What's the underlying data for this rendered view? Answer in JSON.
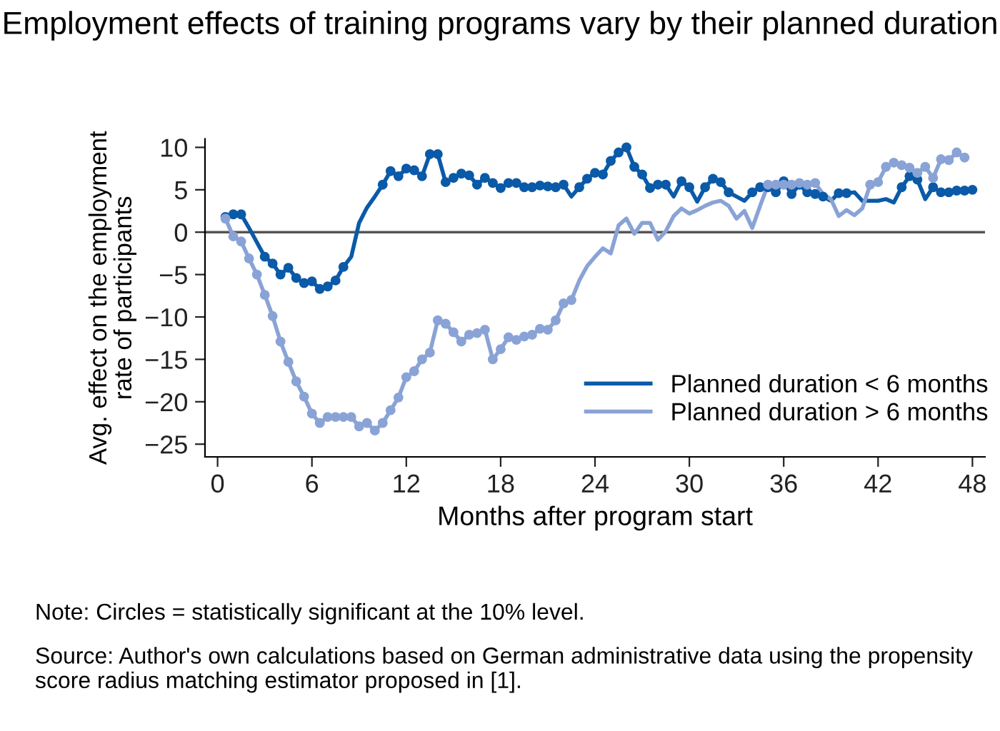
{
  "chart_data": {
    "type": "line",
    "title": "Employment effects of training programs vary by their planned duration",
    "xlabel": "Months after program start",
    "ylabel": "Avg. effect on the employment\nrate of participants",
    "xlim": [
      -0.8,
      48.8
    ],
    "ylim": [
      -26.5,
      11
    ],
    "xticks": [
      0,
      6,
      12,
      18,
      24,
      30,
      36,
      42,
      48
    ],
    "yticks": [
      10,
      5,
      0,
      {
        "value": -5,
        "label": "−5"
      },
      {
        "value": -10,
        "label": "−10"
      },
      {
        "value": -15,
        "label": "−15"
      },
      {
        "value": -20,
        "label": "−20"
      },
      {
        "value": -25,
        "label": "−25"
      }
    ],
    "grid": false,
    "legend": "bottom right",
    "ref_lines": [
      {
        "axis": "y",
        "value": 0,
        "color": "#555555"
      }
    ],
    "annotations": [
      "Note: Circles = statistically significant at the 10% level.",
      "Source: Author's own calculations based on German administrative data using the propensity score radius matching estimator proposed in [1]."
    ],
    "series": [
      {
        "name": "Planned duration < 6 months",
        "color": "#0a5aa8",
        "marker": "none",
        "x": [
          0.5,
          1,
          1.5,
          2,
          2.5,
          3,
          3.5,
          4,
          4.5,
          5,
          5.5,
          6,
          6.5,
          7,
          7.5,
          8,
          8.5,
          9,
          9.5,
          10,
          10.5,
          11,
          11.5,
          12,
          12.5,
          13,
          13.5,
          14,
          14.5,
          15,
          15.5,
          16,
          16.5,
          17,
          17.5,
          18,
          18.5,
          19,
          19.5,
          20,
          20.5,
          21,
          21.5,
          22,
          22.5,
          23,
          23.5,
          24,
          24.5,
          25,
          25.5,
          26,
          26.5,
          27,
          27.5,
          28,
          28.5,
          29,
          29.5,
          30,
          30.5,
          31,
          31.5,
          32,
          32.5,
          33,
          33.5,
          34,
          34.5,
          35,
          35.5,
          36,
          36.5,
          37,
          37.5,
          38,
          38.5,
          39,
          39.5,
          40,
          40.5,
          41,
          41.5,
          42,
          42.5,
          43,
          43.5,
          44,
          44.5,
          45,
          45.5,
          46,
          46.5,
          47,
          47.5,
          48
        ],
        "values": [
          1.8,
          2.1,
          2.1,
          0.5,
          -1.2,
          -2.9,
          -3.7,
          -5.0,
          -4.2,
          -5.4,
          -6.0,
          -5.8,
          -6.7,
          -6.4,
          -5.7,
          -4.1,
          -2.9,
          1.1,
          2.9,
          4.2,
          5.6,
          7.2,
          6.6,
          7.5,
          7.3,
          6.6,
          9.2,
          9.2,
          5.9,
          6.4,
          6.9,
          6.7,
          5.6,
          6.4,
          5.8,
          5.2,
          5.8,
          5.8,
          5.3,
          5.3,
          5.5,
          5.4,
          5.3,
          5.6,
          4.2,
          5.3,
          6.3,
          7.0,
          6.8,
          8.4,
          9.4,
          10.0,
          7.7,
          6.8,
          5.2,
          5.6,
          5.6,
          4.2,
          6.0,
          5.3,
          3.6,
          5.3,
          6.3,
          5.9,
          4.7,
          4.2,
          3.7,
          4.7,
          5.3,
          5.3,
          4.7,
          6.0,
          4.5,
          5.6,
          4.7,
          4.5,
          4.2,
          3.7,
          4.6,
          4.6,
          4.7,
          3.7,
          3.7,
          3.7,
          3.9,
          3.5,
          5.3,
          6.6,
          6.2,
          3.9,
          5.3,
          4.7,
          4.7,
          4.9,
          4.9,
          5.0
        ]
      },
      {
        "name": "Planned duration > 6 months",
        "color": "#8aa3d6",
        "marker": "none",
        "x": [
          0.5,
          1,
          1.5,
          2,
          2.5,
          3,
          3.5,
          4,
          4.5,
          5,
          5.5,
          6,
          6.5,
          7,
          7.5,
          8,
          8.5,
          9,
          9.5,
          10,
          10.5,
          11,
          11.5,
          12,
          12.5,
          13,
          13.5,
          14,
          14.5,
          15,
          15.5,
          16,
          16.5,
          17,
          17.5,
          18,
          18.5,
          19,
          19.5,
          20,
          20.5,
          21,
          21.5,
          22,
          22.5,
          23,
          23.5,
          24,
          24.5,
          25,
          25.5,
          26,
          26.5,
          27,
          27.5,
          28,
          28.5,
          29,
          29.5,
          30,
          30.5,
          31,
          31.5,
          32,
          32.5,
          33,
          33.5,
          34,
          34.5,
          35,
          35.5,
          36,
          36.5,
          37,
          37.5,
          38,
          38.5,
          39,
          39.5,
          40,
          40.5,
          41,
          41.5,
          42,
          42.5,
          43,
          43.5,
          44,
          44.5,
          45,
          45.5,
          46,
          46.5,
          47,
          47.5
        ],
        "values": [
          1.6,
          -0.5,
          -1.1,
          -3.1,
          -5.0,
          -7.4,
          -9.9,
          -12.9,
          -15.3,
          -17.6,
          -19.4,
          -21.4,
          -22.5,
          -21.8,
          -21.8,
          -21.8,
          -21.8,
          -22.9,
          -22.5,
          -23.4,
          -22.5,
          -21.0,
          -19.5,
          -17.1,
          -16.4,
          -15.0,
          -14.2,
          -10.4,
          -10.8,
          -11.8,
          -12.9,
          -12.1,
          -11.9,
          -11.5,
          -15.0,
          -13.8,
          -12.4,
          -12.7,
          -12.3,
          -12.1,
          -11.4,
          -11.5,
          -10.4,
          -8.4,
          -8.0,
          -5.7,
          -4.0,
          -2.9,
          -1.9,
          -2.5,
          0.8,
          1.6,
          -0.2,
          1.1,
          1.1,
          -0.9,
          0.1,
          1.9,
          2.8,
          2.2,
          2.6,
          3.1,
          3.5,
          3.7,
          3.1,
          1.6,
          2.5,
          0.5,
          3.1,
          5.6,
          5.6,
          5.6,
          5.6,
          5.8,
          5.6,
          5.8,
          4.5,
          3.9,
          1.9,
          2.6,
          2.0,
          2.8,
          5.6,
          5.9,
          7.7,
          8.2,
          7.9,
          7.6,
          7.0,
          7.7,
          6.4,
          8.6,
          8.5,
          9.4,
          8.8
        ]
      },
      {
        "color": "#0a5aa8",
        "type": "scatter",
        "marker": "circle",
        "x": [
          0.5,
          1,
          1.5,
          3,
          3.5,
          4,
          4.5,
          5,
          5.5,
          6,
          6.5,
          7,
          7.5,
          8,
          10.5,
          11,
          11.5,
          12,
          12.5,
          13,
          13.5,
          14,
          14.5,
          15,
          15.5,
          16,
          16.5,
          17,
          17.5,
          18,
          18.5,
          19,
          19.5,
          20,
          20.5,
          21,
          21.5,
          22,
          23,
          23.5,
          24,
          24.5,
          25,
          25.5,
          26,
          26.5,
          27,
          27.5,
          28,
          28.5,
          29.5,
          30,
          31,
          31.5,
          32,
          32.5,
          34,
          34.5,
          35,
          35.5,
          36,
          36.5,
          37,
          37.5,
          38,
          38.5,
          39.5,
          40,
          43.5,
          44,
          44.5,
          45.5,
          46,
          46.5,
          47,
          47.5,
          48
        ],
        "values": [
          1.8,
          2.1,
          2.1,
          -2.9,
          -3.7,
          -5.0,
          -4.2,
          -5.4,
          -6.0,
          -5.8,
          -6.7,
          -6.4,
          -5.7,
          -4.1,
          5.6,
          7.2,
          6.6,
          7.5,
          7.3,
          6.6,
          9.2,
          9.2,
          5.9,
          6.4,
          6.9,
          6.7,
          5.6,
          6.4,
          5.8,
          5.2,
          5.8,
          5.8,
          5.3,
          5.3,
          5.5,
          5.4,
          5.3,
          5.6,
          5.3,
          6.3,
          7.0,
          6.8,
          8.4,
          9.4,
          10.0,
          7.7,
          6.8,
          5.2,
          5.6,
          5.6,
          6.0,
          5.3,
          5.3,
          6.3,
          5.9,
          4.7,
          4.7,
          5.3,
          5.3,
          4.7,
          6.0,
          4.5,
          5.6,
          4.7,
          4.5,
          4.2,
          4.6,
          4.6,
          5.3,
          6.6,
          6.2,
          5.3,
          4.7,
          4.7,
          4.9,
          4.9,
          5.0
        ]
      },
      {
        "color": "#8aa3d6",
        "type": "scatter",
        "marker": "circle",
        "x": [
          0.5,
          1,
          1.5,
          2,
          2.5,
          3,
          3.5,
          4,
          4.5,
          5,
          5.5,
          6,
          6.5,
          7,
          7.5,
          8,
          8.5,
          9,
          9.5,
          10,
          10.5,
          11,
          11.5,
          12,
          12.5,
          13,
          13.5,
          14,
          14.5,
          15,
          15.5,
          16,
          16.5,
          17,
          17.5,
          18,
          18.5,
          19,
          19.5,
          20,
          20.5,
          21,
          21.5,
          22,
          22.5,
          35,
          35.5,
          36,
          36.5,
          37,
          37.5,
          38,
          41.5,
          42,
          42.5,
          43,
          43.5,
          44,
          44.5,
          45,
          45.5,
          46,
          46.5,
          47,
          47.5
        ],
        "values": [
          1.6,
          -0.5,
          -1.1,
          -3.1,
          -5.0,
          -7.4,
          -9.9,
          -12.9,
          -15.3,
          -17.6,
          -19.4,
          -21.4,
          -22.5,
          -21.8,
          -21.8,
          -21.8,
          -21.8,
          -22.9,
          -22.5,
          -23.4,
          -22.5,
          -21.0,
          -19.5,
          -17.1,
          -16.4,
          -15.0,
          -14.2,
          -10.4,
          -10.8,
          -11.8,
          -12.9,
          -12.1,
          -11.9,
          -11.5,
          -15.0,
          -13.8,
          -12.4,
          -12.7,
          -12.3,
          -12.1,
          -11.4,
          -11.5,
          -10.4,
          -8.4,
          -8.0,
          5.6,
          5.6,
          5.6,
          5.6,
          5.8,
          5.6,
          5.8,
          5.6,
          5.9,
          7.7,
          8.2,
          7.9,
          7.6,
          7.0,
          7.7,
          6.4,
          8.6,
          8.5,
          9.4,
          8.8
        ]
      }
    ]
  }
}
